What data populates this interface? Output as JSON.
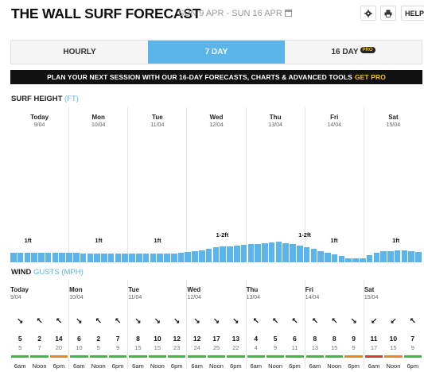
{
  "header": {
    "title": "THE WALL SURF FORECAST",
    "date_range": "SUN 9 APR - SUN 16 APR",
    "help_label": "HELP",
    "settings_icon": "gear-icon",
    "print_icon": "print-icon",
    "calendar_icon": "calendar-icon"
  },
  "tabs": [
    {
      "label": "HOURLY"
    },
    {
      "label": "7 DAY",
      "active": true
    },
    {
      "label": "16 DAY",
      "badge": "PRO"
    }
  ],
  "promo": {
    "text": "PLAN YOUR NEXT SESSION WITH OUR 16-DAY FORECASTS, CHARTS & ADVANCED TOOLS",
    "cta": "GET PRO"
  },
  "surf": {
    "title": "SURF HEIGHT",
    "unit": "(FT)",
    "days": [
      {
        "name": "Today",
        "date": "9/04",
        "label": "1ft"
      },
      {
        "name": "Mon",
        "date": "10/04",
        "label": "1ft"
      },
      {
        "name": "Tue",
        "date": "11/04",
        "label": "1ft"
      },
      {
        "name": "Wed",
        "date": "12/04",
        "label": "1-2ft"
      },
      {
        "name": "Thu",
        "date": "13/04",
        "label": "1-2ft"
      },
      {
        "name": "Fri",
        "date": "14/04",
        "label": "1ft"
      },
      {
        "name": "Sat",
        "date": "15/04",
        "label": "1ft"
      }
    ],
    "heights_ft": [
      0.8,
      0.8,
      0.8,
      0.8,
      0.8,
      0.8,
      0.8,
      0.8,
      0.8,
      0.8,
      0.75,
      0.75,
      0.75,
      0.75,
      0.75,
      0.7,
      0.7,
      0.7,
      0.7,
      0.7,
      0.7,
      0.7,
      0.7,
      0.75,
      0.8,
      0.85,
      0.9,
      1.0,
      1.1,
      1.25,
      1.3,
      1.35,
      1.4,
      1.45,
      1.5,
      1.55,
      1.6,
      1.65,
      1.7,
      1.6,
      1.5,
      1.4,
      1.25,
      1.1,
      0.95,
      0.8,
      0.65,
      0.5,
      0.35,
      0.3,
      0.35,
      0.6,
      0.8,
      0.9,
      0.95,
      1.0,
      1.0,
      0.9,
      0.85
    ],
    "max_ft": 2.0
  },
  "wind": {
    "title": "WIND",
    "unit": "GUSTS (MPH)",
    "days": [
      {
        "name": "Today",
        "date": "9/04",
        "slots": [
          {
            "time": "6am",
            "dir": "↘",
            "speed": "5",
            "gust": "5",
            "color": "#4caf50"
          },
          {
            "time": "Noon",
            "dir": "↖",
            "speed": "2",
            "gust": "7",
            "color": "#4caf50"
          },
          {
            "time": "6pm",
            "dir": "↖",
            "speed": "14",
            "gust": "20",
            "color": "#e08a2a"
          }
        ]
      },
      {
        "name": "Mon",
        "date": "10/04",
        "slots": [
          {
            "time": "6am",
            "dir": "↘",
            "speed": "6",
            "gust": "10",
            "color": "#4caf50"
          },
          {
            "time": "Noon",
            "dir": "↖",
            "speed": "2",
            "gust": "5",
            "color": "#4caf50"
          },
          {
            "time": "6pm",
            "dir": "↖",
            "speed": "7",
            "gust": "9",
            "color": "#4caf50"
          }
        ]
      },
      {
        "name": "Tue",
        "date": "11/04",
        "slots": [
          {
            "time": "6am",
            "dir": "↘",
            "speed": "8",
            "gust": "15",
            "color": "#4caf50"
          },
          {
            "time": "Noon",
            "dir": "↘",
            "speed": "10",
            "gust": "15",
            "color": "#4caf50"
          },
          {
            "time": "6pm",
            "dir": "↘",
            "speed": "12",
            "gust": "23",
            "color": "#4caf50"
          }
        ]
      },
      {
        "name": "Wed",
        "date": "12/04",
        "slots": [
          {
            "time": "6am",
            "dir": "↘",
            "speed": "12",
            "gust": "24",
            "color": "#4caf50"
          },
          {
            "time": "Noon",
            "dir": "↘",
            "speed": "17",
            "gust": "25",
            "color": "#4caf50"
          },
          {
            "time": "6pm",
            "dir": "↘",
            "speed": "13",
            "gust": "22",
            "color": "#4caf50"
          }
        ]
      },
      {
        "name": "Thu",
        "date": "13/04",
        "slots": [
          {
            "time": "6am",
            "dir": "↖",
            "speed": "4",
            "gust": "4",
            "color": "#4caf50"
          },
          {
            "time": "Noon",
            "dir": "↖",
            "speed": "5",
            "gust": "9",
            "color": "#4caf50"
          },
          {
            "time": "6pm",
            "dir": "↖",
            "speed": "6",
            "gust": "11",
            "color": "#4caf50"
          }
        ]
      },
      {
        "name": "Fri",
        "date": "14/04",
        "slots": [
          {
            "time": "6am",
            "dir": "↖",
            "speed": "8",
            "gust": "13",
            "color": "#4caf50"
          },
          {
            "time": "Noon",
            "dir": "↖",
            "speed": "8",
            "gust": "15",
            "color": "#4caf50"
          },
          {
            "time": "6pm",
            "dir": "↘",
            "speed": "9",
            "gust": "9",
            "color": "#e08a2a"
          }
        ]
      },
      {
        "name": "Sat",
        "date": "15/04",
        "slots": [
          {
            "time": "6am",
            "dir": "↙",
            "speed": "11",
            "gust": "17",
            "color": "#d43a3a"
          },
          {
            "time": "Noon",
            "dir": "↙",
            "speed": "10",
            "gust": "15",
            "color": "#e08a2a"
          },
          {
            "time": "6pm",
            "dir": "↖",
            "speed": "7",
            "gust": "9",
            "color": "#4caf50"
          }
        ]
      }
    ]
  }
}
